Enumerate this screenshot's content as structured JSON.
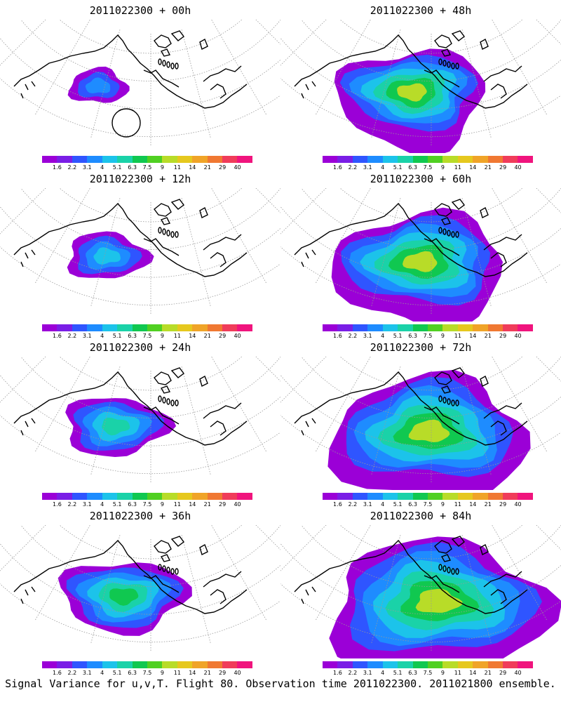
{
  "figure": {
    "caption": "Signal Variance for u,v,T. Flight 80. Observation time 2011022300. 2011021800 ensemble."
  },
  "colorbar": {
    "levels": [
      "1.6",
      "2.2",
      "3.1",
      "4",
      "5.1",
      "6.3",
      "7.5",
      "9",
      "11",
      "14",
      "21",
      "29",
      "40"
    ],
    "colors": [
      "#9b00d7",
      "#7a1ee6",
      "#2f55ff",
      "#1e8cff",
      "#1cc3ea",
      "#1ad2a8",
      "#10c850",
      "#50d022",
      "#b8dc28",
      "#e6c81e",
      "#f0a428",
      "#f07832",
      "#f03c5a",
      "#f0147d"
    ]
  },
  "panels": [
    {
      "title": "2011022300 + 00h",
      "intensity": 0
    },
    {
      "title": "2011022300 + 12h",
      "intensity": 1
    },
    {
      "title": "2011022300 + 24h",
      "intensity": 2
    },
    {
      "title": "2011022300 + 36h",
      "intensity": 3
    },
    {
      "title": "2011022300 + 48h",
      "intensity": 4
    },
    {
      "title": "2011022300 + 60h",
      "intensity": 5
    },
    {
      "title": "2011022300 + 72h",
      "intensity": 6
    },
    {
      "title": "2011022300 + 84h",
      "intensity": 7
    }
  ]
}
